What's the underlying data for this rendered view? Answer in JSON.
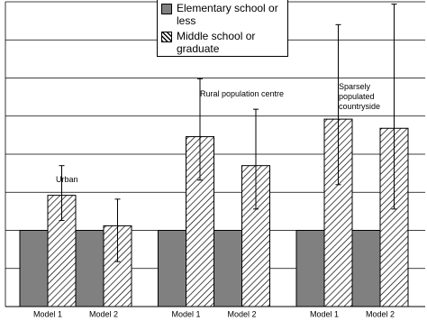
{
  "chart_data": {
    "type": "bar",
    "categories": [
      "Model 1",
      "Model 2",
      "Model 1",
      "Model 2",
      "Model 1",
      "Model 2"
    ],
    "series": [
      {
        "name": "Elementary school or less",
        "color": "#808080",
        "values": [
          1,
          1,
          1,
          1,
          1,
          1
        ]
      },
      {
        "name": "Middle school or graduate",
        "color": "#000000",
        "hatch": true,
        "values": [
          1.46,
          1.06,
          2.23,
          1.85,
          2.46,
          2.34
        ],
        "ci_low": [
          1.13,
          0.59,
          1.66,
          1.28,
          1.6,
          1.28
        ],
        "ci_high": [
          1.85,
          1.41,
          2.99,
          2.59,
          3.7,
          3.97
        ]
      }
    ],
    "annotations": [
      "Urban",
      "Rural population centre",
      "Sparsely populated countryside"
    ],
    "ylim": [
      0,
      4
    ],
    "yticks": [
      0,
      0.5,
      1,
      1.5,
      2,
      2.5,
      3,
      3.5,
      4
    ],
    "grid": true,
    "legend": "top-center"
  }
}
